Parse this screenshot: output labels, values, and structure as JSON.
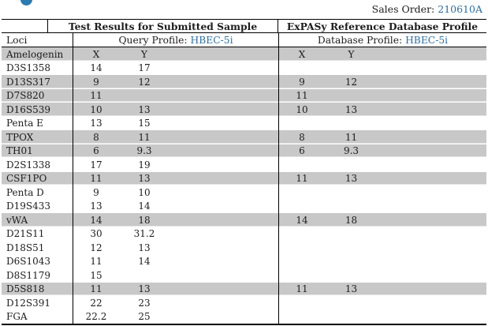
{
  "header": {
    "sales_order_label": "Sales Order:",
    "sales_order_value": "210610A"
  },
  "table": {
    "section_headers": {
      "left": "Test Results for Submitted Sample",
      "right": "ExPASy Reference Database Profile"
    },
    "subheader": {
      "loci_label": "Loci",
      "query_label": "Query Profile:",
      "query_value": "HBEC-5i",
      "database_label": "Database Profile:",
      "database_value": "HBEC-5i"
    },
    "rows": [
      {
        "loci": "Amelogenin",
        "query_x": "X",
        "query_y": "Y",
        "db_x": "X",
        "db_y": "Y",
        "highlighted": true
      },
      {
        "loci": "D3S1358",
        "query_x": "14",
        "query_y": "17",
        "db_x": "",
        "db_y": "",
        "highlighted": false
      },
      {
        "loci": "D13S317",
        "query_x": "9",
        "query_y": "12",
        "db_x": "9",
        "db_y": "12",
        "highlighted": true
      },
      {
        "loci": "D7S820",
        "query_x": "11",
        "query_y": "",
        "db_x": "11",
        "db_y": "",
        "highlighted": true
      },
      {
        "loci": "D16S539",
        "query_x": "10",
        "query_y": "13",
        "db_x": "10",
        "db_y": "13",
        "highlighted": true
      },
      {
        "loci": "Penta E",
        "query_x": "13",
        "query_y": "15",
        "db_x": "",
        "db_y": "",
        "highlighted": false
      },
      {
        "loci": "TPOX",
        "query_x": "8",
        "query_y": "11",
        "db_x": "8",
        "db_y": "11",
        "highlighted": true
      },
      {
        "loci": "TH01",
        "query_x": "6",
        "query_y": "9.3",
        "db_x": "6",
        "db_y": "9.3",
        "highlighted": true
      },
      {
        "loci": "D2S1338",
        "query_x": "17",
        "query_y": "19",
        "db_x": "",
        "db_y": "",
        "highlighted": false
      },
      {
        "loci": "CSF1PO",
        "query_x": "11",
        "query_y": "13",
        "db_x": "11",
        "db_y": "13",
        "highlighted": true
      },
      {
        "loci": "Penta D",
        "query_x": "9",
        "query_y": "10",
        "db_x": "",
        "db_y": "",
        "highlighted": false
      },
      {
        "loci": "D19S433",
        "query_x": "13",
        "query_y": "14",
        "db_x": "",
        "db_y": "",
        "highlighted": false
      },
      {
        "loci": "vWA",
        "query_x": "14",
        "query_y": "18",
        "db_x": "14",
        "db_y": "18",
        "highlighted": true
      },
      {
        "loci": "D21S11",
        "query_x": "30",
        "query_y": "31.2",
        "db_x": "",
        "db_y": "",
        "highlighted": false
      },
      {
        "loci": "D18S51",
        "query_x": "12",
        "query_y": "13",
        "db_x": "",
        "db_y": "",
        "highlighted": false
      },
      {
        "loci": "D6S1043",
        "query_x": "11",
        "query_y": "14",
        "db_x": "",
        "db_y": "",
        "highlighted": false
      },
      {
        "loci": "D8S1179",
        "query_x": "15",
        "query_y": "",
        "db_x": "",
        "db_y": "",
        "highlighted": false
      },
      {
        "loci": "D5S818",
        "query_x": "11",
        "query_y": "13",
        "db_x": "11",
        "db_y": "13",
        "highlighted": true
      },
      {
        "loci": "D12S391",
        "query_x": "22",
        "query_y": "23",
        "db_x": "",
        "db_y": "",
        "highlighted": false
      },
      {
        "loci": "FGA",
        "query_x": "22.2",
        "query_y": "25",
        "db_x": "",
        "db_y": "",
        "highlighted": false
      }
    ]
  },
  "colors": {
    "accent_blue": "#2e6f9e",
    "logo_blue": "#2b7ab2",
    "row_highlight_gray": "#c8c8c8"
  }
}
